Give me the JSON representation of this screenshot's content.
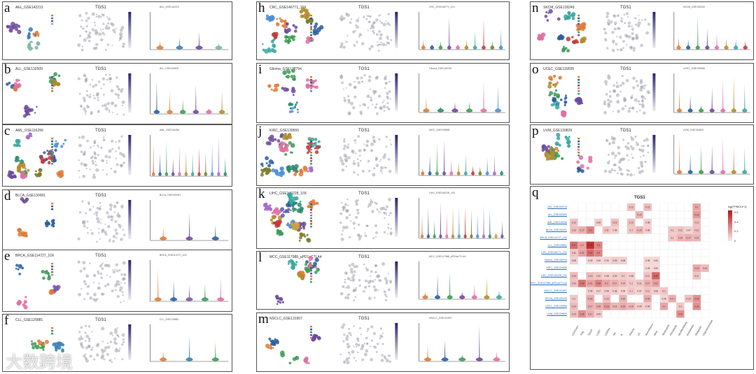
{
  "gene": "TGS1",
  "panels": [
    {
      "letter": "a",
      "dataset": "AEL_GSE142213",
      "violin_title": "AEL_GSE142213",
      "colors": [
        "#e07b39",
        "#3a7fb5",
        "#6b4a9e",
        "#79b6a5"
      ]
    },
    {
      "letter": "b",
      "dataset": "ALL_GSE132509",
      "violin_title": "ALL_GSE132509",
      "colors": [
        "#2b5d9e",
        "#e07b39",
        "#3c9b55",
        "#6b4a9e",
        "#e26fa3",
        "#b28b2b"
      ]
    },
    {
      "letter": "c",
      "dataset": "AML_GSE116256",
      "violin_title": "AML_GSE116256",
      "colors": [
        "#e07b39",
        "#2b5d9e",
        "#3c9b55",
        "#6b4a9e",
        "#e26fa3",
        "#b28b2b",
        "#3aa6a0",
        "#c03a3a",
        "#7d7d2b",
        "#4b8fd6",
        "#a66bc6",
        "#2b8a6e"
      ]
    },
    {
      "letter": "d",
      "dataset": "BLCA_GSE130001",
      "violin_title": "BLCA_GSE130001",
      "colors": [
        "#e07b39",
        "#6b4a9e",
        "#2b5d9e"
      ]
    },
    {
      "letter": "e",
      "dataset": "BRCA_GSE114727_10X",
      "violin_title": "BRCA_GSE114727_10X",
      "colors": [
        "#e07b39",
        "#2b5d9e",
        "#7a5aa8",
        "#3c9b55",
        "#e26fa3"
      ]
    },
    {
      "letter": "f",
      "dataset": "CLL_GSE125881",
      "violin_title": "CLL_GSE125881",
      "colors": [
        "#e07b39",
        "#3a7fb5",
        "#3c9b55"
      ]
    },
    {
      "letter": "h",
      "dataset": "CRC_GSE146771_10X",
      "violin_title": "CRC_GSE146771_10X",
      "colors": [
        "#e07b39",
        "#2b5d9e",
        "#3c9b55",
        "#6b4a9e",
        "#e26fa3",
        "#b28b2b",
        "#3aa6a0",
        "#c03a3a",
        "#7d7d2b",
        "#4b8fd6"
      ]
    },
    {
      "letter": "i",
      "dataset": "Glioma_GSE138794",
      "violin_title": "Glioma_GSE138794",
      "colors": [
        "#e07b39",
        "#2b8a6e",
        "#6b4a9e",
        "#3c9b55",
        "#e26fa3",
        "#4b8fd6"
      ]
    },
    {
      "letter": "j",
      "dataset": "KIRC_GSE139555",
      "violin_title": "KIRC_GSE139555",
      "colors": [
        "#e07b39",
        "#2b5d9e",
        "#3c9b55",
        "#6b4a9e",
        "#e26fa3",
        "#b28b2b",
        "#3aa6a0",
        "#c03a3a",
        "#7d7d2b",
        "#4b8fd6",
        "#a66bc6",
        "#2b8a6e"
      ]
    },
    {
      "letter": "k",
      "dataset": "LIHC_GSE140228_10X",
      "violin_title": "LIHC_GSE140228_10X",
      "colors": [
        "#e07b39",
        "#2b5d9e",
        "#3c9b55",
        "#6b4a9e",
        "#e26fa3",
        "#b28b2b",
        "#3aa6a0",
        "#c03a3a",
        "#7d7d2b",
        "#4b8fd6",
        "#a66bc6",
        "#2b8a6e",
        "#d0a03a",
        "#5a5ab0"
      ]
    },
    {
      "letter": "l",
      "dataset": "MCC_GSE117988_aPD1aCTLA4",
      "violin_title": "MCC_GSE117988_aPD1aCTLA4",
      "colors": [
        "#e07b39",
        "#2b5d9e",
        "#3c9b55",
        "#6b4a9e",
        "#e26fa3",
        "#b28b2b",
        "#3aa6a0"
      ]
    },
    {
      "letter": "m",
      "dataset": "NSCLC_GSE131907",
      "violin_title": "NSCLC_GSE131907",
      "colors": [
        "#e07b39",
        "#2b5d9e",
        "#3c9b55",
        "#6b4a9e",
        "#e26fa3"
      ]
    },
    {
      "letter": "n",
      "dataset": "SKCM_GSE139249",
      "violin_title": "SKCM_GSE139249",
      "colors": [
        "#e07b39",
        "#2b5d9e",
        "#3c9b55",
        "#6b4a9e",
        "#e26fa3",
        "#b28b2b",
        "#3aa6a0",
        "#c03a3a"
      ]
    },
    {
      "letter": "o",
      "dataset": "UCEC_GSE139555",
      "violin_title": "UCEC_GSE139555",
      "colors": [
        "#e07b39",
        "#2b5d9e",
        "#3c9b55",
        "#6b4a9e",
        "#e26fa3",
        "#b28b2b",
        "#3aa6a0"
      ]
    },
    {
      "letter": "p",
      "dataset": "UVM_GSE139829",
      "violin_title": "UVM_GSE139829",
      "colors": [
        "#e07b39",
        "#2b5d9e",
        "#3c9b55",
        "#6b4a9e",
        "#e26fa3",
        "#b28b2b",
        "#3aa6a0"
      ]
    }
  ],
  "heatmap": {
    "letter": "q",
    "title": "TGS1",
    "legend_title": "log(TPM/10+1)",
    "legend_ticks": [
      "0.6",
      "0.4",
      "0.2",
      "0"
    ],
    "rows": [
      "AEL_GSE142213",
      "ALL_GSE132509",
      "AML_GSE116256",
      "BLCA_GSE130001",
      "BRCA_GSE114727_10X",
      "CLL_GSE125881",
      "CRC_GSE146771_10X",
      "Glioma_GSE138794",
      "KIRC_GSE139555",
      "LIHC_GSE140228_10X",
      "MCC_GSE117988_aPD1aCTLA4",
      "NSCLC_GSE131907",
      "SKCM_GSE139249",
      "UCEC_GSE139555",
      "UVM_GSE139829"
    ],
    "cols": [
      "CD4Tconv",
      "Treg",
      "Tprolif",
      "CD8T",
      "CD8Tex",
      "NK",
      "B",
      "Plasma",
      "DC",
      "Mono/Macro",
      "Mast",
      "Neutrophils",
      "Fibroblasts",
      "Myofibroblasts",
      "Endothelial",
      "Malignant",
      "Oligodendrocyte"
    ],
    "cells": [
      [
        null,
        null,
        null,
        null,
        null,
        null,
        null,
        0.12,
        null,
        0.13,
        null,
        null,
        null,
        null,
        null,
        0.2,
        null
      ],
      [
        null,
        null,
        null,
        null,
        null,
        null,
        null,
        null,
        0.15,
        null,
        null,
        null,
        null,
        null,
        null,
        0.23,
        null
      ],
      [
        0.12,
        null,
        null,
        0.09,
        null,
        0.13,
        null,
        0.12,
        null,
        0.08,
        null,
        null,
        null,
        null,
        null,
        0.12,
        null
      ],
      [
        0.13,
        0.17,
        0.3,
        null,
        0.11,
        0.08,
        null,
        0.1,
        0.15,
        0.08,
        null,
        null,
        0.1,
        0.11,
        0.07,
        0.12,
        null
      ],
      [
        null,
        null,
        null,
        null,
        null,
        null,
        null,
        null,
        null,
        null,
        null,
        null,
        0.1,
        0.15,
        0.17,
        0.15,
        null
      ],
      [
        0.37,
        0.2,
        0.55,
        0.3,
        null,
        null,
        null,
        null,
        null,
        null,
        null,
        null,
        null,
        null,
        null,
        null,
        null
      ],
      [
        0.11,
        0.21,
        0.36,
        0.3,
        null,
        null,
        null,
        null,
        null,
        null,
        null,
        null,
        null,
        null,
        null,
        null,
        null
      ],
      [
        0.08,
        null,
        0.06,
        0.06,
        0.06,
        0.09,
        0.08,
        null,
        null,
        0.06,
        0.05,
        null,
        null,
        null,
        null,
        null,
        null
      ],
      [
        null,
        null,
        null,
        null,
        null,
        null,
        null,
        null,
        null,
        0.05,
        0.05,
        null,
        null,
        null,
        null,
        0.19,
        0.14
      ],
      [
        0.14,
        null,
        0.13,
        0.11,
        0.08,
        0.09,
        0.1,
        0.08,
        null,
        0.11,
        0.39,
        null,
        null,
        null,
        null,
        0.11,
        null
      ],
      [
        0.12,
        0.34,
        0.21,
        0.29,
        0.2,
        0.17,
        0.14,
        0.1,
        0.11,
        0.17,
        0.21,
        null,
        null,
        null,
        null,
        null,
        null
      ],
      [
        null,
        null,
        0.08,
        0.07,
        0.08,
        0.08,
        0.06,
        0.1,
        0.07,
        0.11,
        0.08,
        0.1,
        null,
        null,
        null,
        null,
        null
      ],
      [
        0.1,
        null,
        0.18,
        null,
        0.13,
        null,
        0.16,
        null,
        null,
        0.18,
        null,
        0.06,
        0.17,
        null,
        0.12,
        0.26,
        null
      ],
      [
        0.14,
        null,
        0.17,
        0.18,
        0.23,
        0.15,
        0.19,
        0.15,
        0.09,
        0.09,
        null,
        0.2,
        null,
        0.1,
        null,
        0.26,
        null
      ],
      [
        0.13,
        0.26,
        0.17,
        0.09,
        null,
        null,
        null,
        null,
        null,
        null,
        null,
        null,
        null,
        0.26,
        null,
        null,
        null
      ]
    ]
  },
  "colors": {
    "accent": "#2a2470",
    "heat_high": "#c41e1e",
    "heat_low": "#fbe9e9",
    "link": "#2a6ebb"
  },
  "watermark": "大数跨境"
}
